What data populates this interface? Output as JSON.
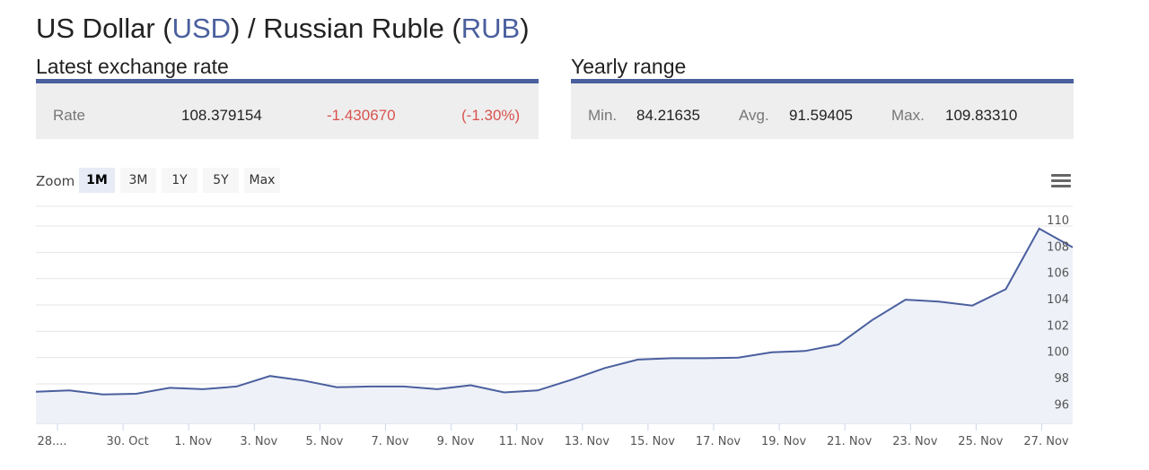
{
  "title": {
    "prefix": "US Dollar (",
    "base_code": "USD",
    "middle": ") / Russian Ruble (",
    "quote_code": "RUB",
    "suffix": ")"
  },
  "latest": {
    "heading": "Latest exchange rate",
    "label": "Rate",
    "rate": "108.379154",
    "change": "-1.430670",
    "change_pct": "(-1.30%)"
  },
  "yearly": {
    "heading": "Yearly range",
    "min_label": "Min.",
    "min": "84.21635",
    "avg_label": "Avg.",
    "avg": "91.59405",
    "max_label": "Max.",
    "max": "109.83310"
  },
  "zoom": {
    "label": "Zoom",
    "options": [
      "1M",
      "3M",
      "1Y",
      "5Y",
      "Max"
    ],
    "active": "1M"
  },
  "colors": {
    "accent": "#4a5f9e",
    "negative": "#d9534f",
    "line": "#4a5f9e",
    "area": "#eef1f8"
  },
  "icons": {
    "menu": "hamburger-menu-icon"
  },
  "chart_data": {
    "type": "area",
    "x_tick_labels": [
      "28....",
      "30. Oct",
      "1. Nov",
      "3. Nov",
      "5. Nov",
      "7. Nov",
      "9. Nov",
      "11. Nov",
      "13. Nov",
      "15. Nov",
      "17. Nov",
      "19. Nov",
      "21. Nov",
      "23. Nov",
      "25. Nov",
      "27. Nov"
    ],
    "y_ticks": [
      96,
      98,
      100,
      102,
      104,
      106,
      108,
      110
    ],
    "ylim": [
      95,
      111.5
    ],
    "y_axis_side": "right",
    "grid": true,
    "series": [
      {
        "values": [
          97.4,
          97.5,
          97.2,
          97.25,
          97.7,
          97.6,
          97.8,
          98.6,
          98.25,
          97.75,
          97.8,
          97.8,
          97.6,
          97.9,
          97.35,
          97.5,
          98.3,
          99.2,
          99.85,
          99.95,
          99.95,
          100.0,
          100.4,
          100.5,
          101.0,
          102.85,
          104.4,
          104.25,
          103.95,
          105.2,
          109.8,
          108.38
        ]
      }
    ]
  }
}
